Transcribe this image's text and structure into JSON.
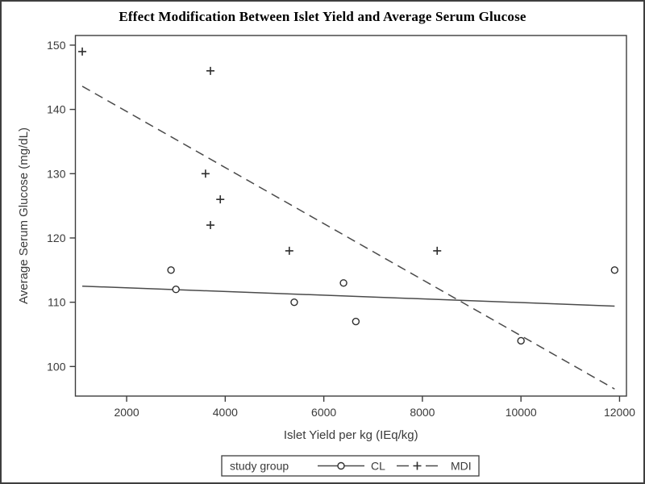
{
  "chart_data": {
    "type": "scatter",
    "title": "Effect Modification Between Islet Yield and Average Serum Glucose",
    "xlabel": "Islet Yield per kg (IEq/kg)",
    "ylabel": "Average Serum Glucose (mg/dL)",
    "xlim": [
      960,
      12140
    ],
    "ylim": [
      95.4,
      151.5
    ],
    "x_ticks": [
      2000,
      4000,
      6000,
      8000,
      10000,
      12000
    ],
    "y_ticks": [
      100,
      110,
      120,
      130,
      140,
      150
    ],
    "grid": false,
    "legend": {
      "title": "study group",
      "position": "bottom-center",
      "entries": [
        {
          "label": "CL",
          "marker": "circle",
          "line": "solid"
        },
        {
          "label": "MDI",
          "marker": "plus",
          "line": "dashed"
        }
      ]
    },
    "series": [
      {
        "name": "CL",
        "marker": "circle",
        "line_style": "solid",
        "points": [
          [
            2900,
            115
          ],
          [
            3000,
            112
          ],
          [
            5400,
            110
          ],
          [
            6400,
            113
          ],
          [
            6650,
            107
          ],
          [
            10000,
            104
          ],
          [
            11900,
            115
          ]
        ],
        "fit_line": {
          "x": [
            1100,
            11900
          ],
          "y": [
            112.5,
            109.4
          ]
        }
      },
      {
        "name": "MDI",
        "marker": "plus",
        "line_style": "dashed",
        "points": [
          [
            1100,
            149
          ],
          [
            3700,
            146
          ],
          [
            3600,
            130
          ],
          [
            3900,
            126
          ],
          [
            3700,
            122
          ],
          [
            5300,
            118
          ],
          [
            8300,
            118
          ]
        ],
        "fit_line": {
          "x": [
            1100,
            11900
          ],
          "y": [
            143.6,
            96.5
          ]
        }
      }
    ],
    "colors": {
      "frame": "#3d3d3d",
      "fit_line": "#4a4a4a",
      "marker": "#2e2e2e",
      "text": "#3a3a3a",
      "title_text": "#000000",
      "background": "#ffffff"
    }
  }
}
